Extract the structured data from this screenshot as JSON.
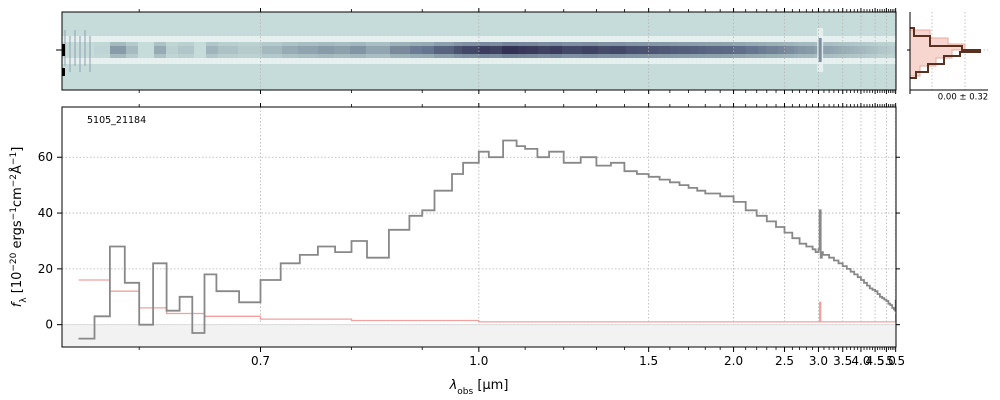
{
  "chart_data": [
    {
      "type": "image",
      "panel": "2D spectrum",
      "colormap": "bone (reversed)",
      "x_range": [
        0.55,
        5.52
      ],
      "trace_features": [
        {
          "x": 1.1,
          "intensity": 1.0
        },
        {
          "x": 3.03,
          "note": "bright spike"
        }
      ]
    },
    {
      "type": "histogram",
      "panel": "profile",
      "label": "0.00 ± 0.32",
      "colors": {
        "data": "#5a3020",
        "model": "#f4c6be"
      }
    },
    {
      "type": "line",
      "panel": "1D spectrum",
      "label": "5105_21184",
      "xlabel": "λobs [μm]",
      "xlabel_main": "λ",
      "xlabel_sub": "obs",
      "xlabel_unit": "[μm]",
      "ylabel": "fλ [10^-20 ergs^-1cm^-2Å^-1]",
      "ylabel_main": "f",
      "ylabel_sub": "λ",
      "ylabel_unit": "[10",
      "ylabel_unit_sup1": "−20",
      "ylabel_unit_mid1": " ergs",
      "ylabel_unit_sup2": "−1",
      "ylabel_unit_mid2": "cm",
      "ylabel_unit_sup3": "−2",
      "ylabel_unit_mid3": "Å",
      "ylabel_unit_sup4": "−1",
      "ylabel_unit_end": "]",
      "x_scale": "reciprocal",
      "xlim": [
        0.55,
        5.52
      ],
      "ylim": [
        -8,
        78
      ],
      "xticks": [
        0.7,
        1.0,
        1.5,
        2.0,
        2.5,
        3.0,
        3.5,
        4.0,
        4.5,
        5.0,
        5.5
      ],
      "xtick_labels": [
        "0.7",
        "1.0",
        "1.5",
        "2.0",
        "2.5",
        "3.0",
        "3.5",
        "4.0",
        "4.5",
        "5.0",
        "5.5"
      ],
      "yticks": [
        0,
        20,
        40,
        60
      ],
      "ytick_labels": [
        "0",
        "20",
        "40",
        "60"
      ],
      "grid": true,
      "series": [
        {
          "color": "#888888",
          "x": [
            0.56,
            0.57,
            0.58,
            0.59,
            0.6,
            0.61,
            0.62,
            0.63,
            0.64,
            0.65,
            0.66,
            0.68,
            0.7,
            0.72,
            0.74,
            0.76,
            0.78,
            0.8,
            0.82,
            0.85,
            0.88,
            0.9,
            0.92,
            0.95,
            0.97,
            1.0,
            1.02,
            1.05,
            1.08,
            1.1,
            1.13,
            1.16,
            1.2,
            1.25,
            1.3,
            1.35,
            1.4,
            1.45,
            1.5,
            1.55,
            1.6,
            1.65,
            1.7,
            1.75,
            1.8,
            1.85,
            1.9,
            2.0,
            2.1,
            2.2,
            2.3,
            2.4,
            2.5,
            2.6,
            2.7,
            2.8,
            2.9,
            2.95,
            3.0,
            3.02,
            3.04,
            3.06,
            3.08,
            3.1,
            3.2,
            3.3,
            3.4,
            3.5,
            3.6,
            3.7,
            3.8,
            3.9,
            4.0,
            4.1,
            4.2,
            4.3,
            4.4,
            4.5,
            4.6,
            4.7,
            4.8,
            4.9,
            5.0,
            5.1,
            5.2,
            5.3,
            5.4,
            5.47,
            5.5
          ],
          "values": [
            -5,
            3,
            28,
            15,
            0,
            22,
            5,
            10,
            -3,
            18,
            12,
            8,
            16,
            22,
            25,
            28,
            26,
            30,
            24,
            34,
            39,
            41,
            48,
            54,
            58,
            62,
            60,
            66,
            64,
            63,
            60,
            62,
            58,
            60,
            57,
            58,
            55,
            54,
            53,
            52,
            51,
            50,
            49,
            48,
            47,
            47,
            46,
            44,
            41,
            39,
            37,
            35,
            33,
            31,
            29,
            28,
            27,
            26,
            27,
            41,
            24,
            26,
            25,
            25,
            24,
            23,
            22,
            21,
            20,
            19,
            18,
            17,
            16,
            15,
            14,
            13,
            12.5,
            12,
            11,
            10,
            9.5,
            9,
            8.5,
            7.5,
            7,
            6,
            5.5,
            5,
            9
          ]
        },
        {
          "color": "#f2a0a0",
          "x": [
            0.56,
            0.58,
            0.6,
            0.62,
            0.65,
            0.7,
            0.8,
            1.0,
            1.5,
            2.0,
            2.5,
            3.0,
            3.02,
            3.04,
            3.06,
            3.1,
            3.5,
            4.0,
            4.5,
            5.0,
            5.4,
            5.5
          ],
          "values": [
            16,
            12,
            6,
            4,
            3,
            2,
            1.5,
            1,
            1,
            1,
            1,
            1,
            8,
            1,
            1,
            1,
            1,
            1,
            1,
            1,
            1,
            4
          ]
        }
      ]
    }
  ]
}
